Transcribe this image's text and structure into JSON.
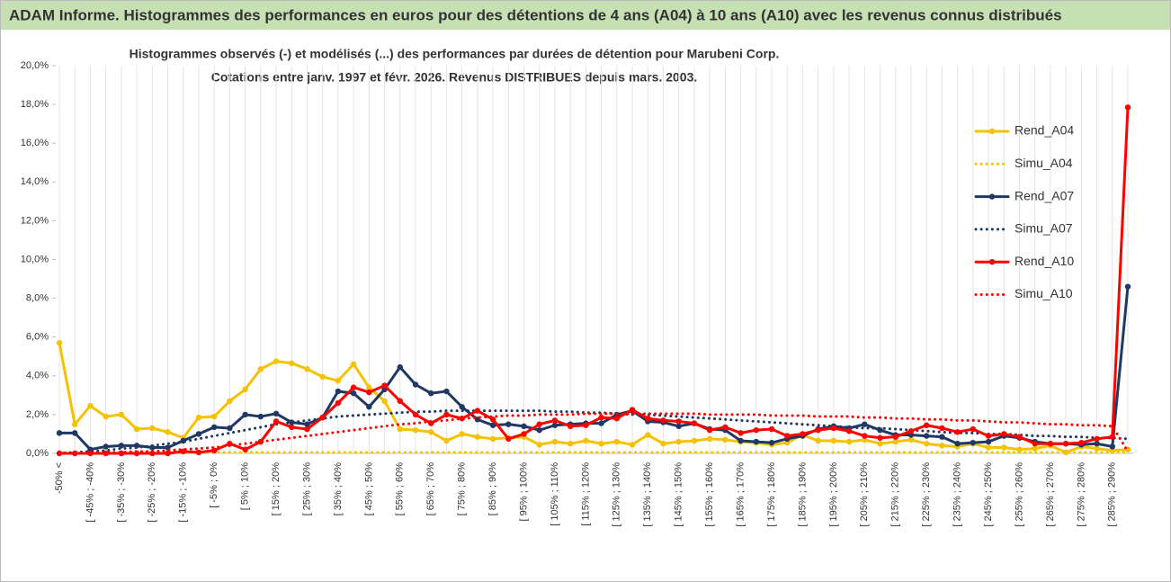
{
  "chart_data": {
    "type": "line",
    "title": "ADAM Informe. Histogrammes des performances en euros pour des détentions de 4 ans (A04) à 10 ans (A10) avec les revenus connus distribués",
    "subtitle": [
      "Histogrammes observés (-) et modélisés (...) des performances par durées de détention pour Marubeni Corp.",
      "Cotations entre janv. 1997 et févr. 2026. Revenus DISTRIBUES depuis mars. 2003."
    ],
    "categories": [
      "-50% <",
      null,
      "[ -45% ; -40%",
      null,
      "[ -35% ; -30%",
      null,
      "[ -25% ; -20%",
      null,
      "[ -15% ; -10%",
      null,
      "[ -5% ; 0%",
      null,
      "[ 5% ; 10%",
      null,
      "[ 15% ; 20%",
      null,
      "[ 25% ; 30%",
      null,
      "[ 35% ; 40%",
      null,
      "[ 45% ; 50%",
      null,
      "[ 55% ; 60%",
      null,
      "[ 65% ; 70%",
      null,
      "[ 75% ; 80%",
      null,
      "[ 85% ; 90%",
      null,
      "[ 95% ; 100%",
      null,
      "[ 105% ; 110%",
      null,
      "[ 115% ; 120%",
      null,
      "[ 125% ; 130%",
      null,
      "[ 135% ; 140%",
      null,
      "[ 145% ; 150%",
      null,
      "[ 155% ; 160%",
      null,
      "[ 165% ; 170%",
      null,
      "[ 175% ; 180%",
      null,
      "[ 185% ; 190%",
      null,
      "[ 195% ; 200%",
      null,
      "[ 205% ; 210%",
      null,
      "[ 215% ; 220%",
      null,
      "[ 225% ; 230%",
      null,
      "[ 235% ; 240%",
      null,
      "[ 245% ; 250%",
      null,
      "[ 255% ; 260%",
      null,
      "[ 265% ; 270%",
      null,
      "[ 275% ; 280%",
      null,
      "[ 285% ; 290%",
      null
    ],
    "series": [
      {
        "name": "Rend_A04",
        "color": "#f5c200",
        "dash": "solid",
        "values": [
          5.7,
          1.5,
          2.45,
          1.9,
          2.0,
          1.25,
          1.3,
          1.1,
          0.8,
          1.85,
          1.9,
          2.7,
          3.3,
          4.35,
          4.75,
          4.65,
          4.35,
          3.95,
          3.75,
          4.6,
          3.4,
          2.7,
          1.25,
          1.2,
          1.1,
          0.65,
          1.0,
          0.85,
          0.75,
          0.8,
          0.85,
          0.45,
          0.6,
          0.5,
          0.65,
          0.5,
          0.6,
          0.45,
          0.95,
          0.5,
          0.6,
          0.65,
          0.75,
          0.7,
          0.6,
          0.55,
          0.45,
          0.55,
          0.95,
          0.65,
          0.65,
          0.6,
          0.7,
          0.5,
          0.6,
          0.7,
          0.5,
          0.4,
          0.35,
          0.5,
          0.3,
          0.3,
          0.2,
          0.25,
          0.4,
          0.05,
          0.35,
          0.25,
          0.15,
          0.2
        ]
      },
      {
        "name": "Simu_A04",
        "color": "#f5c200",
        "dash": "dotted",
        "values": [
          0.05,
          0.05,
          0.05,
          0.05,
          0.05,
          0.05,
          0.05,
          0.05,
          0.05,
          0.05,
          0.05,
          0.05,
          0.05,
          0.05,
          0.05,
          0.05,
          0.05,
          0.05,
          0.05,
          0.05,
          0.05,
          0.05,
          0.05,
          0.05,
          0.05,
          0.05,
          0.05,
          0.05,
          0.05,
          0.05,
          0.05,
          0.05,
          0.05,
          0.05,
          0.05,
          0.05,
          0.05,
          0.05,
          0.05,
          0.05,
          0.05,
          0.05,
          0.05,
          0.05,
          0.05,
          0.05,
          0.05,
          0.05,
          0.05,
          0.05,
          0.05,
          0.05,
          0.05,
          0.05,
          0.05,
          0.05,
          0.05,
          0.05,
          0.05,
          0.05,
          0.05,
          0.05,
          0.05,
          0.05,
          0.05,
          0.05,
          0.05,
          0.05,
          0.05,
          0.05
        ]
      },
      {
        "name": "Rend_A07",
        "color": "#1f3864",
        "dash": "solid",
        "values": [
          1.05,
          1.05,
          0.2,
          0.35,
          0.4,
          0.4,
          0.3,
          0.3,
          0.65,
          1.0,
          1.35,
          1.3,
          2.0,
          1.9,
          2.05,
          1.6,
          1.5,
          1.85,
          3.2,
          3.1,
          2.4,
          3.3,
          4.45,
          3.55,
          3.1,
          3.2,
          2.4,
          1.75,
          1.45,
          1.5,
          1.4,
          1.2,
          1.45,
          1.5,
          1.55,
          1.55,
          2.0,
          2.2,
          1.65,
          1.6,
          1.4,
          1.55,
          1.25,
          1.2,
          0.65,
          0.6,
          0.55,
          0.75,
          0.9,
          1.25,
          1.4,
          1.3,
          1.5,
          1.2,
          0.95,
          0.95,
          0.9,
          0.85,
          0.5,
          0.55,
          0.6,
          0.9,
          0.8,
          0.6,
          0.5,
          0.5,
          0.45,
          0.5,
          0.35,
          8.6
        ]
      },
      {
        "name": "Simu_A07",
        "color": "#1f3864",
        "dash": "dotted",
        "values": [
          0.0,
          0.05,
          0.1,
          0.15,
          0.25,
          0.3,
          0.4,
          0.5,
          0.6,
          0.75,
          0.9,
          1.05,
          1.2,
          1.35,
          1.5,
          1.6,
          1.7,
          1.8,
          1.9,
          1.95,
          2.0,
          2.05,
          2.1,
          2.15,
          2.15,
          2.2,
          2.2,
          2.2,
          2.2,
          2.2,
          2.2,
          2.2,
          2.15,
          2.15,
          2.1,
          2.1,
          2.05,
          2.0,
          2.0,
          1.95,
          1.9,
          1.85,
          1.8,
          1.75,
          1.7,
          1.65,
          1.6,
          1.55,
          1.5,
          1.45,
          1.4,
          1.35,
          1.3,
          1.3,
          1.25,
          1.2,
          1.15,
          1.1,
          1.05,
          1.05,
          1.0,
          1.0,
          0.95,
          0.9,
          0.9,
          0.85,
          0.85,
          0.8,
          0.8,
          0.75
        ]
      },
      {
        "name": "Rend_A10",
        "color": "#ff0000",
        "dash": "solid",
        "values": [
          0,
          0,
          0,
          0,
          0,
          0,
          0,
          0,
          0.1,
          0.05,
          0.15,
          0.5,
          0.2,
          0.6,
          1.65,
          1.35,
          1.25,
          1.85,
          2.6,
          3.4,
          3.15,
          3.5,
          2.7,
          2.0,
          1.55,
          2.0,
          1.8,
          2.2,
          1.75,
          0.75,
          1.0,
          1.5,
          1.7,
          1.4,
          1.45,
          1.85,
          1.8,
          2.25,
          1.8,
          1.7,
          1.65,
          1.55,
          1.2,
          1.35,
          1.05,
          1.2,
          1.25,
          0.9,
          1.0,
          1.2,
          1.3,
          1.15,
          0.9,
          0.8,
          0.85,
          1.15,
          1.45,
          1.3,
          1.1,
          1.25,
          0.9,
          1.0,
          0.85,
          0.5,
          0.5,
          0.5,
          0.55,
          0.75,
          0.85,
          17.85
        ]
      },
      {
        "name": "Simu_A10",
        "color": "#ff0000",
        "dash": "dotted",
        "values": [
          0,
          0,
          0,
          0.05,
          0.05,
          0.1,
          0.1,
          0.15,
          0.2,
          0.25,
          0.3,
          0.4,
          0.5,
          0.6,
          0.7,
          0.8,
          0.9,
          1.0,
          1.1,
          1.2,
          1.3,
          1.4,
          1.5,
          1.55,
          1.65,
          1.7,
          1.8,
          1.85,
          1.9,
          1.95,
          1.95,
          2.0,
          2.0,
          2.0,
          2.05,
          2.05,
          2.05,
          2.05,
          2.05,
          2.05,
          2.05,
          2.05,
          2.0,
          2.0,
          2.0,
          2.0,
          1.95,
          1.95,
          1.95,
          1.9,
          1.9,
          1.9,
          1.85,
          1.85,
          1.8,
          1.8,
          1.75,
          1.75,
          1.7,
          1.7,
          1.65,
          1.6,
          1.6,
          1.55,
          1.5,
          1.5,
          1.45,
          1.45,
          1.4,
          0.1
        ]
      }
    ],
    "ylim": [
      0,
      20
    ],
    "yticks": [
      {
        "value": 0,
        "label": "0,0%"
      },
      {
        "value": 2,
        "label": "2,0%"
      },
      {
        "value": 4,
        "label": "4,0%"
      },
      {
        "value": 6,
        "label": "6,0%"
      },
      {
        "value": 8,
        "label": "8,0%"
      },
      {
        "value": 10,
        "label": "10,0%"
      },
      {
        "value": 12,
        "label": "12,0%"
      },
      {
        "value": 14,
        "label": "14,0%"
      },
      {
        "value": 16,
        "label": "16,0%"
      },
      {
        "value": 18,
        "label": "18,0%"
      },
      {
        "value": 20,
        "label": "20,0%"
      }
    ],
    "legend": "right"
  }
}
